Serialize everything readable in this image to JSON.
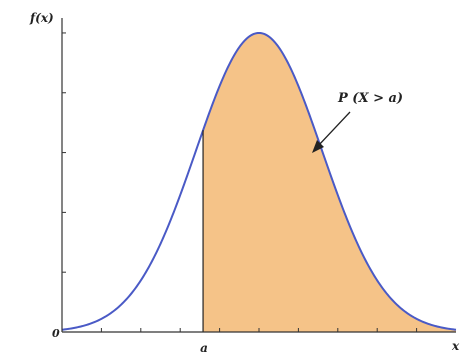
{
  "chart_data": {
    "type": "area",
    "title": "",
    "ylabel": "f(x)",
    "xlabel": "x",
    "origin_label": "0",
    "threshold_label": "a",
    "annotation": "P (X > a)",
    "series": [
      {
        "name": "",
        "mean": 0.5,
        "sd": 0.16,
        "peak": 1.0
      }
    ],
    "threshold_x": 0.358,
    "xlim": [
      0,
      1.0
    ],
    "ylim": [
      0,
      1.05
    ],
    "shaded_region": "x > a",
    "colors": {
      "curve": "#4a5ac6",
      "fill": "#f5c388",
      "axis": "#333333"
    },
    "grid": false
  }
}
